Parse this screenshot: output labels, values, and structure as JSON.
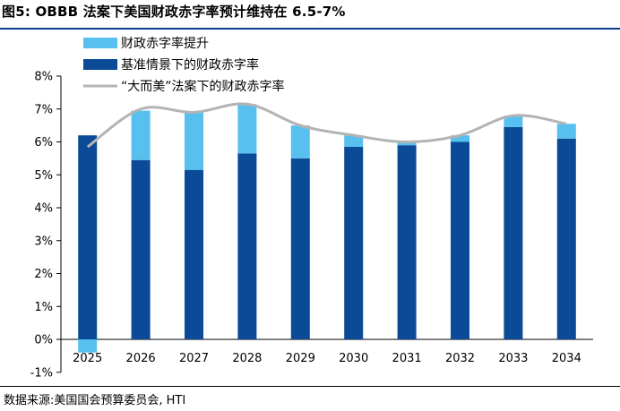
{
  "title": "图5:  OBBB 法案下美国财政赤字率预计维持在 6.5-7%",
  "source": "数据来源:美国国会预算委员会, HTI",
  "colors": {
    "rule": "#0b3b8c",
    "base_bar": "#0b4a96",
    "increase_bar": "#57c0ef",
    "line": "#b4b4b4"
  },
  "chart_data": {
    "type": "bar",
    "categories": [
      "2025",
      "2026",
      "2027",
      "2028",
      "2029",
      "2030",
      "2031",
      "2032",
      "2033",
      "2034"
    ],
    "ylim": [
      -1,
      8
    ],
    "yticks": [
      "-1%",
      "0%",
      "1%",
      "2%",
      "3%",
      "4%",
      "5%",
      "6%",
      "7%",
      "8%"
    ],
    "series": [
      {
        "name": "财政赤字率提升",
        "kind": "stacked-bar",
        "values": [
          0,
          1.5,
          1.75,
          1.5,
          1.0,
          0.35,
          0.1,
          0.2,
          0.35,
          0.45
        ]
      },
      {
        "name": "基准情景下的财政赤字率",
        "kind": "bar",
        "values": [
          6.2,
          5.45,
          5.15,
          5.65,
          5.5,
          5.85,
          5.9,
          6.0,
          6.45,
          6.1
        ]
      },
      {
        "name": "“大而美”法案下的财政赤字率",
        "kind": "line",
        "values": [
          5.85,
          7.0,
          6.9,
          7.15,
          6.5,
          6.2,
          6.0,
          6.2,
          6.8,
          6.55
        ]
      }
    ],
    "negative_2025": -0.4
  }
}
